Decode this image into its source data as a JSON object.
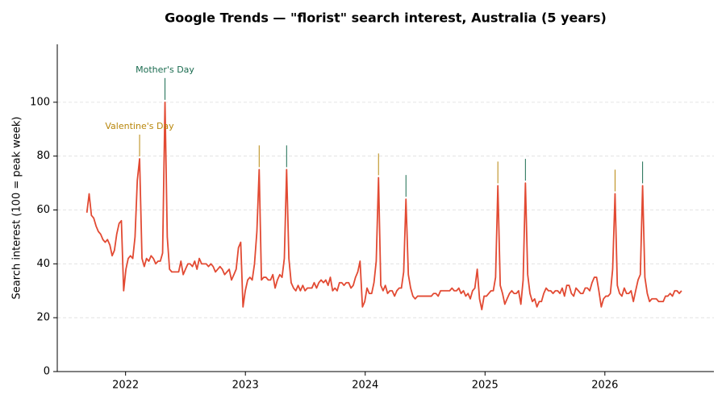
{
  "chart_data": {
    "type": "line",
    "title": "Google Trends — \"florist\" search interest, Australia (5 years)",
    "y_label": "Search interest (100 = peak week)",
    "color": "#e24a33",
    "grid": true,
    "xlim": [
      2021.43,
      2026.91
    ],
    "ylim": [
      0,
      121.5
    ],
    "xticks": [
      2022,
      2023,
      2024,
      2025,
      2026
    ],
    "yticks": [
      0,
      20,
      40,
      60,
      80,
      100
    ],
    "x": [
      2021.677,
      2021.696,
      2021.715,
      2021.734,
      2021.754,
      2021.773,
      2021.792,
      2021.811,
      2021.83,
      2021.849,
      2021.869,
      2021.888,
      2021.907,
      2021.926,
      2021.946,
      2021.965,
      2021.984,
      2022.003,
      2022.022,
      2022.041,
      2022.06,
      2022.079,
      2022.098,
      2022.117,
      2022.137,
      2022.156,
      2022.175,
      2022.194,
      2022.213,
      2022.232,
      2022.252,
      2022.271,
      2022.29,
      2022.309,
      2022.329,
      2022.348,
      2022.367,
      2022.386,
      2022.405,
      2022.424,
      2022.443,
      2022.462,
      2022.481,
      2022.5,
      2022.52,
      2022.539,
      2022.558,
      2022.577,
      2022.596,
      2022.615,
      2022.635,
      2022.654,
      2022.673,
      2022.692,
      2022.712,
      2022.731,
      2022.75,
      2022.769,
      2022.788,
      2022.807,
      2022.827,
      2022.846,
      2022.865,
      2022.884,
      2022.904,
      2022.923,
      2022.942,
      2022.961,
      2022.98,
      2022.999,
      2023.019,
      2023.038,
      2023.057,
      2023.076,
      2023.096,
      2023.115,
      2023.134,
      2023.153,
      2023.172,
      2023.191,
      2023.21,
      2023.229,
      2023.248,
      2023.267,
      2023.287,
      2023.306,
      2023.325,
      2023.344,
      2023.363,
      2023.382,
      2023.402,
      2023.421,
      2023.44,
      2023.459,
      2023.479,
      2023.498,
      2023.517,
      2023.536,
      2023.555,
      2023.574,
      2023.594,
      2023.613,
      2023.632,
      2023.651,
      2023.671,
      2023.69,
      2023.709,
      2023.728,
      2023.747,
      2023.766,
      2023.785,
      2023.804,
      2023.823,
      2023.842,
      2023.862,
      2023.881,
      2023.9,
      2023.919,
      2023.938,
      2023.957,
      2023.977,
      2023.996,
      2024.015,
      2024.034,
      2024.054,
      2024.073,
      2024.092,
      2024.111,
      2024.13,
      2024.149,
      2024.168,
      2024.187,
      2024.206,
      2024.225,
      2024.245,
      2024.264,
      2024.283,
      2024.302,
      2024.321,
      2024.34,
      2024.36,
      2024.379,
      2024.398,
      2024.417,
      2024.437,
      2024.456,
      2024.475,
      2024.494,
      2024.513,
      2024.532,
      2024.552,
      2024.571,
      2024.59,
      2024.609,
      2024.629,
      2024.648,
      2024.667,
      2024.686,
      2024.705,
      2024.724,
      2024.743,
      2024.762,
      2024.781,
      2024.8,
      2024.82,
      2024.839,
      2024.858,
      2024.877,
      2024.896,
      2024.915,
      2024.935,
      2024.954,
      2024.973,
      2024.992,
      2025.012,
      2025.031,
      2025.05,
      2025.069,
      2025.088,
      2025.107,
      2025.127,
      2025.146,
      2025.165,
      2025.184,
      2025.204,
      2025.223,
      2025.242,
      2025.261,
      2025.28,
      2025.299,
      2025.318,
      2025.337,
      2025.356,
      2025.375,
      2025.395,
      2025.414,
      2025.433,
      2025.452,
      2025.471,
      2025.49,
      2025.51,
      2025.529,
      2025.548,
      2025.567,
      2025.587,
      2025.606,
      2025.625,
      2025.644,
      2025.663,
      2025.682,
      2025.702,
      2025.721,
      2025.74,
      2025.759,
      2025.779,
      2025.798,
      2025.817,
      2025.836,
      2025.855,
      2025.874,
      2025.893,
      2025.912,
      2025.931,
      2025.95,
      2025.97,
      2025.989,
      2026.008,
      2026.027,
      2026.046,
      2026.065,
      2026.085,
      2026.104,
      2026.123,
      2026.142,
      2026.162,
      2026.181,
      2026.2,
      2026.219,
      2026.238,
      2026.257,
      2026.277,
      2026.296,
      2026.315,
      2026.334,
      2026.354,
      2026.373,
      2026.392,
      2026.411,
      2026.43,
      2026.449,
      2026.468,
      2026.487,
      2026.506,
      2026.525,
      2026.545,
      2026.564,
      2026.583,
      2026.602,
      2026.621,
      2026.64
    ],
    "values": [
      59,
      66,
      58,
      57,
      54,
      52,
      51,
      49,
      48,
      49,
      47,
      43,
      45,
      51,
      55,
      56,
      30,
      38,
      42,
      43,
      42,
      50,
      71,
      79,
      42,
      39,
      42,
      41,
      43,
      42,
      40,
      41,
      41,
      44,
      100,
      50,
      38,
      37,
      37,
      37,
      37,
      41,
      36,
      38,
      40,
      40,
      39,
      41,
      38,
      42,
      40,
      40,
      40,
      39,
      40,
      39,
      37,
      38,
      39,
      38,
      36,
      37,
      38,
      34,
      36,
      38,
      46,
      48,
      24,
      30,
      34,
      35,
      34,
      40,
      52,
      75,
      34,
      35,
      35,
      34,
      34,
      36,
      31,
      34,
      36,
      35,
      42,
      75,
      42,
      33,
      31,
      30,
      32,
      30,
      32,
      30,
      31,
      31,
      31,
      33,
      31,
      33,
      34,
      33,
      34,
      32,
      35,
      30,
      31,
      30,
      33,
      33,
      32,
      33,
      33,
      31,
      32,
      35,
      37,
      41,
      24,
      26,
      31,
      29,
      29,
      33,
      41,
      72,
      32,
      30,
      32,
      29,
      30,
      30,
      28,
      30,
      31,
      31,
      37,
      64,
      36,
      31,
      28,
      27,
      28,
      28,
      28,
      28,
      28,
      28,
      28,
      29,
      29,
      28,
      30,
      30,
      30,
      30,
      30,
      31,
      30,
      30,
      31,
      29,
      30,
      28,
      29,
      27,
      30,
      31,
      38,
      27,
      23,
      28,
      28,
      29,
      30,
      30,
      35,
      69,
      32,
      29,
      25,
      27,
      29,
      30,
      29,
      29,
      30,
      25,
      34,
      70,
      36,
      29,
      26,
      27,
      24,
      26,
      26,
      29,
      31,
      30,
      30,
      29,
      30,
      30,
      29,
      31,
      28,
      32,
      32,
      29,
      28,
      31,
      30,
      29,
      29,
      31,
      31,
      30,
      33,
      35,
      35,
      30,
      24,
      27,
      28,
      28,
      29,
      38,
      66,
      32,
      29,
      28,
      31,
      29,
      29,
      30,
      26,
      30,
      34,
      36,
      69,
      35,
      29,
      26,
      27,
      27,
      27,
      26,
      26,
      26,
      28,
      28,
      29,
      28,
      30,
      30,
      29,
      30
    ],
    "events": [
      {
        "label": "Valentine's Day",
        "color": "#b8860b",
        "x": [
          2022.117,
          2023.115,
          2024.111,
          2025.107,
          2026.085
        ]
      },
      {
        "label": "Mother's Day",
        "color": "#1a6b4f",
        "x": [
          2022.329,
          2023.344,
          2024.34,
          2025.337,
          2026.315
        ]
      }
    ]
  }
}
